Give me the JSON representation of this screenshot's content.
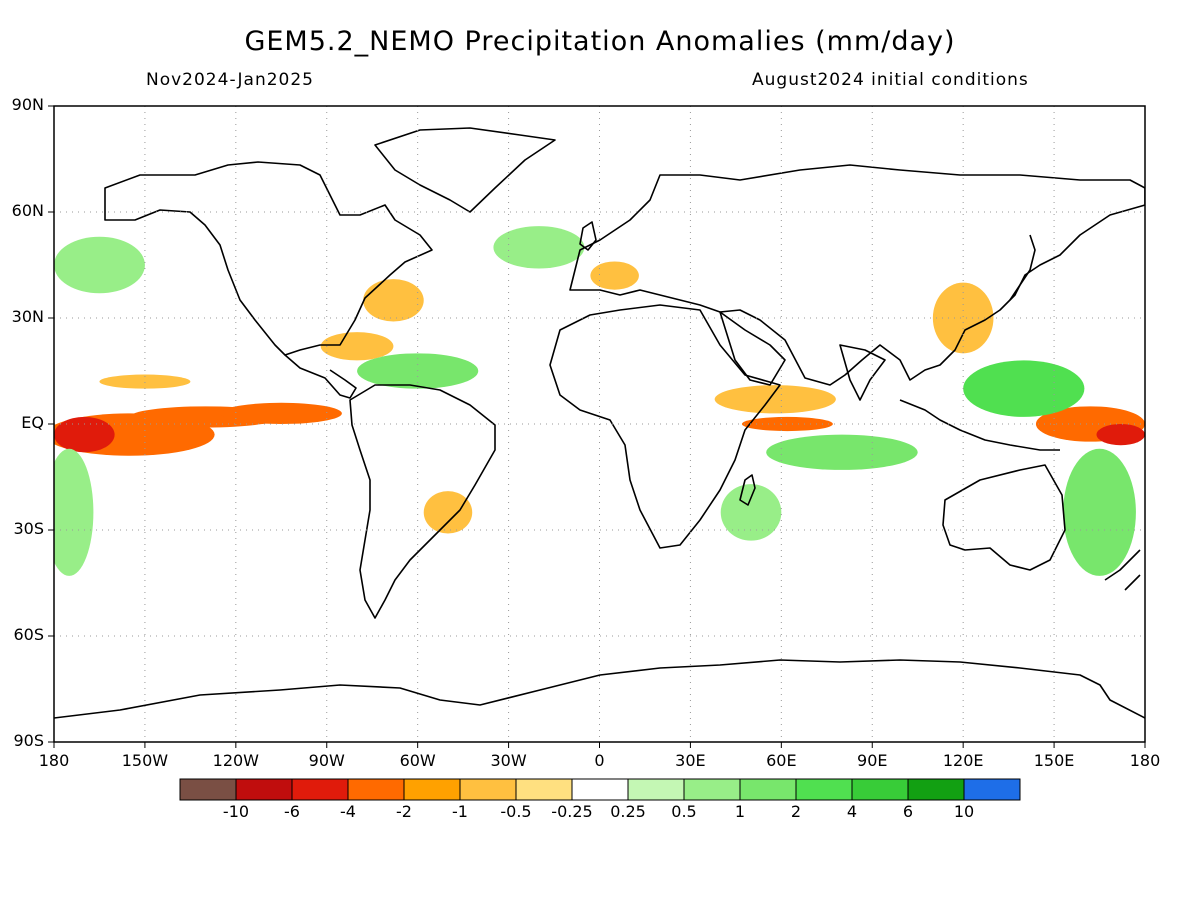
{
  "title": "GEM5.2_NEMO Precipitation Anomalies (mm/day)",
  "subtitle_left": "Nov2024-Jan2025",
  "subtitle_right": "August2024 initial conditions",
  "map": {
    "projection": "equirectangular",
    "lon_range": [
      -180,
      180
    ],
    "lat_range": [
      -90,
      90
    ],
    "grid": "dotted",
    "y_ticks": [
      "90N",
      "60N",
      "30N",
      "EQ",
      "30S",
      "60S",
      "90S"
    ],
    "x_ticks": [
      "180",
      "150W",
      "120W",
      "90W",
      "60W",
      "30W",
      "0",
      "30E",
      "60E",
      "90E",
      "120E",
      "150E",
      "180"
    ]
  },
  "colorbar": {
    "labels": [
      "-10",
      "-6",
      "-4",
      "-2",
      "-1",
      "-0.5",
      "-0.25",
      "0.25",
      "0.5",
      "1",
      "2",
      "4",
      "6",
      "10"
    ],
    "colors": [
      "#7a4f44",
      "#c00d0d",
      "#e01b0b",
      "#ff6a00",
      "#ffa100",
      "#ffc040",
      "#ffe080",
      "#ffffff",
      "#c4f7b4",
      "#98ee88",
      "#78e66c",
      "#50e050",
      "#38cc38",
      "#12a012",
      "#1e6ee8"
    ]
  },
  "anomalies": [
    {
      "lon": -155,
      "lat": -3,
      "rx": 28,
      "ry": 6,
      "c": "#ff6a00"
    },
    {
      "lon": -130,
      "lat": 2,
      "rx": 25,
      "ry": 3,
      "c": "#ff6a00"
    },
    {
      "lon": -105,
      "lat": 3,
      "rx": 20,
      "ry": 3,
      "c": "#ff6a00"
    },
    {
      "lon": -170,
      "lat": -3,
      "rx": 10,
      "ry": 5,
      "c": "#e01b0b"
    },
    {
      "lon": -150,
      "lat": 12,
      "rx": 15,
      "ry": 2,
      "c": "#ffc040"
    },
    {
      "lon": -80,
      "lat": 22,
      "rx": 12,
      "ry": 4,
      "c": "#ffc040"
    },
    {
      "lon": -68,
      "lat": 35,
      "rx": 10,
      "ry": 6,
      "c": "#ffc040"
    },
    {
      "lon": -50,
      "lat": -25,
      "rx": 8,
      "ry": 6,
      "c": "#ffc040"
    },
    {
      "lon": 58,
      "lat": 7,
      "rx": 20,
      "ry": 4,
      "c": "#ffc040"
    },
    {
      "lon": 62,
      "lat": 0,
      "rx": 15,
      "ry": 2,
      "c": "#ff6a00"
    },
    {
      "lon": 162,
      "lat": 0,
      "rx": 18,
      "ry": 5,
      "c": "#ff6a00"
    },
    {
      "lon": 172,
      "lat": -3,
      "rx": 8,
      "ry": 3,
      "c": "#e01b0b"
    },
    {
      "lon": 120,
      "lat": 30,
      "rx": 10,
      "ry": 10,
      "c": "#ffc040"
    },
    {
      "lon": 5,
      "lat": 42,
      "rx": 8,
      "ry": 4,
      "c": "#ffc040"
    },
    {
      "lon": -165,
      "lat": 45,
      "rx": 15,
      "ry": 8,
      "c": "#98ee88"
    },
    {
      "lon": -60,
      "lat": 15,
      "rx": 20,
      "ry": 5,
      "c": "#78e66c"
    },
    {
      "lon": 80,
      "lat": -8,
      "rx": 25,
      "ry": 5,
      "c": "#78e66c"
    },
    {
      "lon": 140,
      "lat": 10,
      "rx": 20,
      "ry": 8,
      "c": "#50e050"
    },
    {
      "lon": 165,
      "lat": -25,
      "rx": 12,
      "ry": 18,
      "c": "#78e66c"
    },
    {
      "lon": -175,
      "lat": -25,
      "rx": 8,
      "ry": 18,
      "c": "#98ee88"
    },
    {
      "lon": -20,
      "lat": 50,
      "rx": 15,
      "ry": 6,
      "c": "#98ee88"
    },
    {
      "lon": 50,
      "lat": -25,
      "rx": 10,
      "ry": 8,
      "c": "#98ee88"
    }
  ]
}
